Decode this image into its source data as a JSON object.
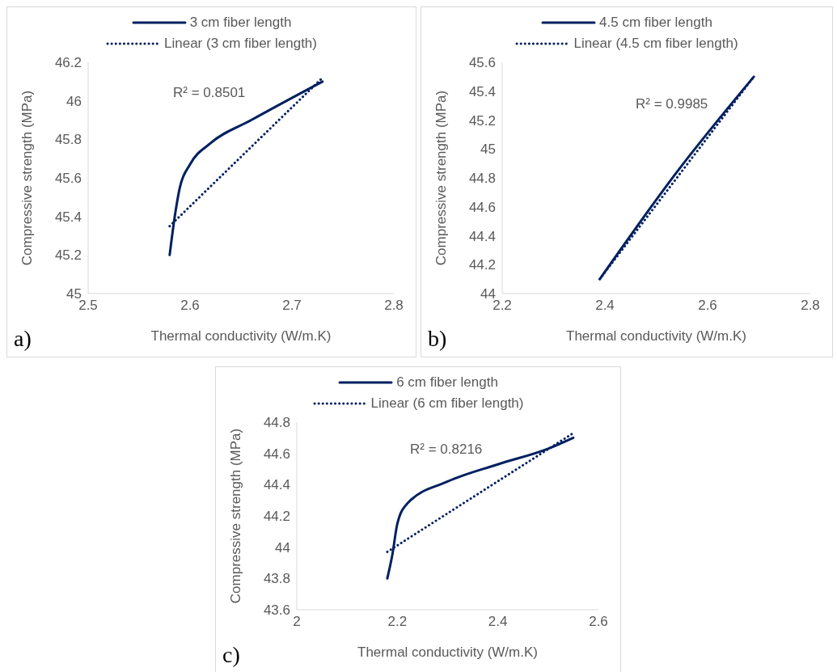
{
  "chart_data": [
    {
      "type": "line",
      "xlabel": "Thermal conductivity (W/m.K)",
      "ylabel": "Compressive strength  (MPa)",
      "xlim": [
        2.5,
        2.8
      ],
      "xticks": [
        2.5,
        2.6,
        2.7,
        2.8
      ],
      "ylim": [
        45,
        46.2
      ],
      "yticks": [
        45,
        45.2,
        45.4,
        45.6,
        45.8,
        46,
        46.2
      ],
      "legend": "top",
      "marker": "none",
      "annotations": [
        "R² = 0.8501",
        "a)"
      ],
      "series": [
        {
          "name": "3 cm fiber length",
          "color": "#002060",
          "line_style": "solid",
          "x": [
            2.58,
            2.585,
            2.59,
            2.6,
            2.62,
            2.66,
            2.73
          ],
          "values": [
            45.2,
            45.4,
            45.55,
            45.67,
            45.78,
            45.9,
            46.1
          ]
        },
        {
          "name": "Linear (3 cm fiber length)",
          "color": "#002060",
          "line_style": "dotted",
          "x": [
            2.58,
            2.73
          ],
          "values": [
            45.35,
            46.12
          ]
        }
      ]
    },
    {
      "type": "line",
      "xlabel": "Thermal conductivity (W/m.K)",
      "ylabel": "Compressive strength  (MPa)",
      "xlim": [
        2.2,
        2.8
      ],
      "xticks": [
        2.2,
        2.4,
        2.6,
        2.8
      ],
      "ylim": [
        44,
        45.6
      ],
      "yticks": [
        44,
        44.2,
        44.4,
        44.6,
        44.8,
        45,
        45.2,
        45.4,
        45.6
      ],
      "legend": "top",
      "marker": "none",
      "annotations": [
        "R² = 0.9985",
        "b)"
      ],
      "series": [
        {
          "name": "4.5 cm fiber length",
          "color": "#002060",
          "line_style": "solid",
          "x": [
            2.39,
            2.54,
            2.69
          ],
          "values": [
            44.1,
            44.84,
            45.5
          ]
        },
        {
          "name": "Linear (4.5 cm fiber length)",
          "color": "#002060",
          "line_style": "dotted",
          "x": [
            2.39,
            2.69
          ],
          "values": [
            44.1,
            45.5
          ]
        }
      ]
    },
    {
      "type": "line",
      "xlabel": "Thermal conductivity (W/m.K)",
      "ylabel": "Compressive strength (MPa)",
      "xlim": [
        2,
        2.6
      ],
      "xticks": [
        2,
        2.2,
        2.4,
        2.6
      ],
      "ylim": [
        43.6,
        44.8
      ],
      "yticks": [
        43.6,
        43.8,
        44,
        44.2,
        44.4,
        44.6,
        44.8
      ],
      "legend": "top",
      "marker": "none",
      "annotations": [
        "R² = 0.8216",
        "c)"
      ],
      "series": [
        {
          "name": "6 cm fiber length",
          "color": "#002060",
          "line_style": "solid",
          "x": [
            2.18,
            2.19,
            2.2,
            2.22,
            2.3,
            2.4,
            2.5,
            2.55
          ],
          "values": [
            43.8,
            43.95,
            44.15,
            44.28,
            44.42,
            44.53,
            44.63,
            44.7
          ]
        },
        {
          "name": "Linear (6 cm fiber length)",
          "color": "#002060",
          "line_style": "dotted",
          "x": [
            2.18,
            2.55
          ],
          "values": [
            43.97,
            44.73
          ]
        }
      ]
    }
  ]
}
